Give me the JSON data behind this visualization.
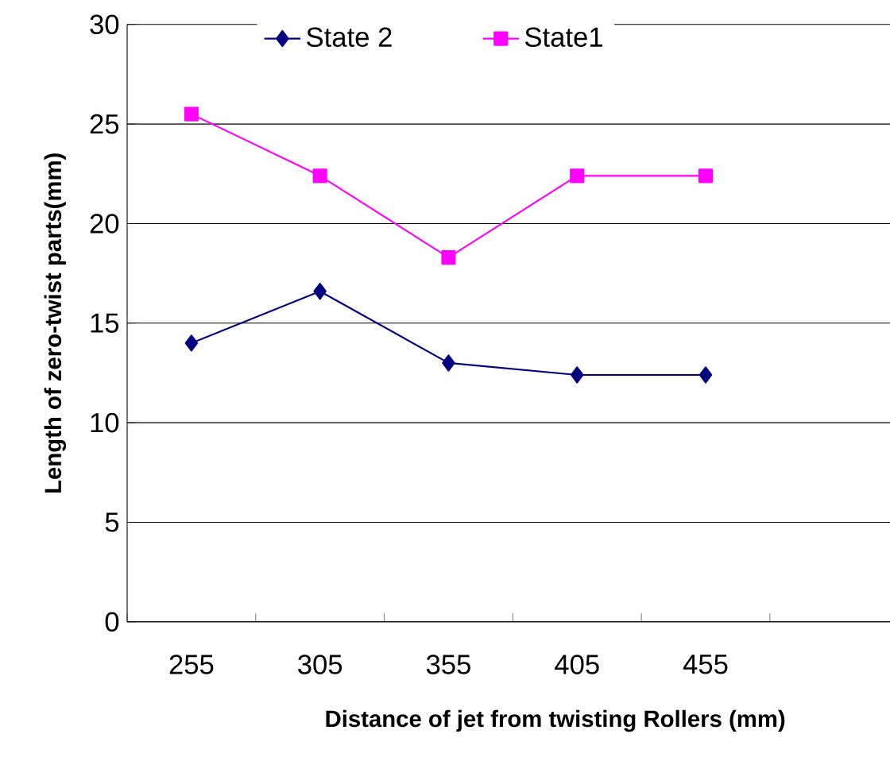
{
  "chart_data": {
    "type": "line",
    "xlabel": "Distance of jet from twisting Rollers (mm)",
    "ylabel": "Length of zero-twist parts(mm)",
    "categories": [
      "255",
      "305",
      "355",
      "405",
      "455",
      null
    ],
    "series": [
      {
        "name": "State 2",
        "color": "#000080",
        "marker": "diamond",
        "values": [
          14.0,
          16.6,
          13.0,
          12.4,
          12.4,
          null
        ]
      },
      {
        "name": "State1",
        "color": "#ff00ff",
        "marker": "square",
        "values": [
          25.5,
          22.4,
          18.3,
          22.4,
          22.4,
          null
        ]
      }
    ],
    "ylim": [
      0,
      30
    ],
    "yticks": [
      0,
      5,
      10,
      15,
      20,
      25,
      30
    ],
    "grid": "y",
    "legend": "top",
    "line_style": "solid"
  }
}
